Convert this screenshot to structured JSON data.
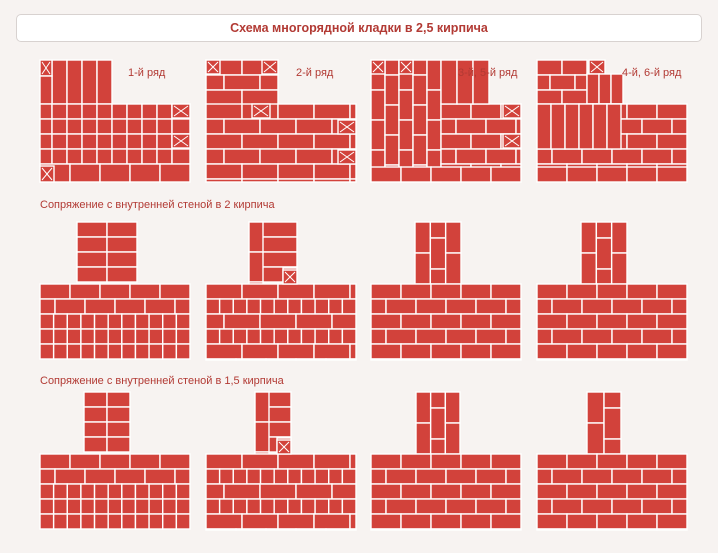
{
  "title": "Схема многорядной кладки в 2,5 кирпича",
  "colors": {
    "brick": "#d2423b",
    "mortar": "#ffffff",
    "text": "#b23a34"
  },
  "row_labels": [
    "1-й ряд",
    "2-й ряд",
    "3-й, 5-й ряд",
    "4-й, 6-й ряд"
  ],
  "sections": [
    {
      "label": "Сопряжение с внутренней стеной в 2 кирпича"
    },
    {
      "label": "Сопряжение с внутренней стеной в 1,5 кирпича"
    }
  ]
}
